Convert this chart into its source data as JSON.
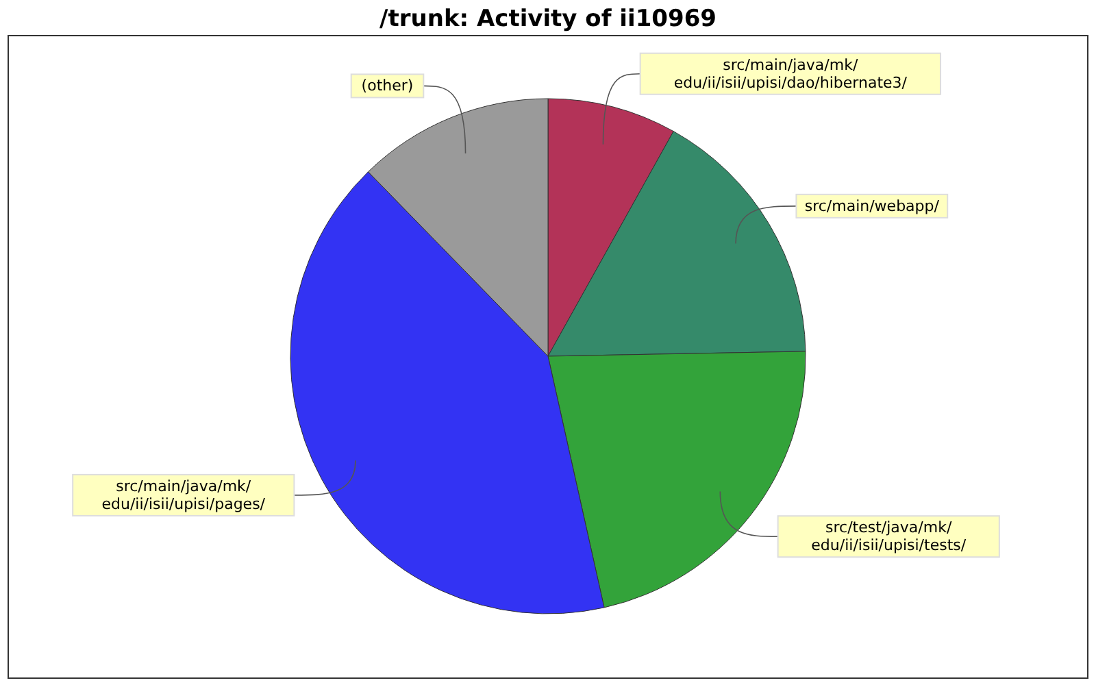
{
  "chart_data": {
    "type": "pie",
    "title": "/trunk: Activity of ii10969",
    "categories": [
      "src/main/java/mk/\nedu/ii/isii/upisi/dao/hibernate3/",
      "src/main/webapp/",
      "src/test/java/mk/\nedu/ii/isii/upisi/tests/",
      "src/main/java/mk/\nedu/ii/isii/upisi/pages/",
      "(other)"
    ],
    "values": [
      8.1,
      16.6,
      21.8,
      41.2,
      12.3
    ],
    "colors": [
      "#b33358",
      "#358a6a",
      "#33a33a",
      "#3333f3",
      "#9a9a9a"
    ]
  }
}
